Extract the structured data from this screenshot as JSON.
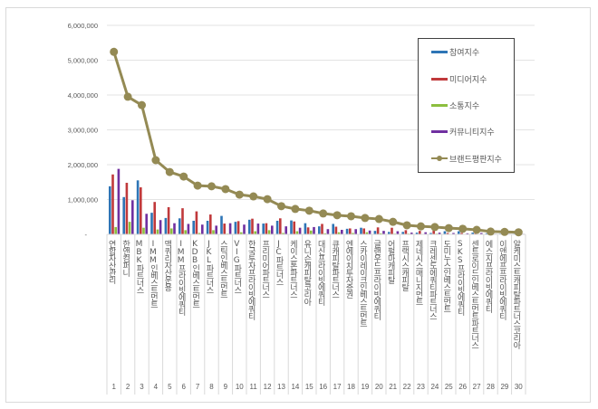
{
  "chart_data": {
    "type": "bar+line",
    "title": "",
    "xlabel": "",
    "ylabel": "",
    "ylim": [
      0,
      6000000
    ],
    "yticks": [
      "6,000,000",
      "5,000,000",
      "4,000,000",
      "3,000,000",
      "2,000,000",
      "1,000,000",
      "-"
    ],
    "grid": true,
    "legend_position": "upper right (inside plot)",
    "categories": [
      "연합자산관리",
      "한앤컴퍼니",
      "MBK파트너스",
      "IMM인베스트먼트",
      "맥쿼리자산운용",
      "IMM프라이빗에쿼티",
      "KDB인베스트먼트",
      "JKL파트너스",
      "스틱인베스트먼트",
      "VIG파트너스",
      "한국투자프라이빗에쿼티",
      "프리미어파트너스",
      "JC파트너스",
      "케이스톤파트너스",
      "유니슨캐피탈코리아",
      "대신프라이빗에쿼티",
      "큐캐피탈파트너스",
      "엔에이치투자증권",
      "스카이레이크인베스트먼트",
      "글랜우드프라이빗에쿼티",
      "어펄마캐피탈",
      "프랙시스캐피탈",
      "제네시스매니지먼트",
      "크레센도에쿼티파트너스",
      "도미누스인베스트먼트",
      "SKS프라이빗에쿼티",
      "센트로이드인베스트먼트파트너스",
      "에스지프라이빗에쿼티",
      "이앤에프프라이빗에쿼티",
      "알케미스트캐피탈파트너스코리아"
    ],
    "ranks": [
      "1",
      "2",
      "3",
      "4",
      "5",
      "6",
      "7",
      "8",
      "9",
      "10",
      "11",
      "12",
      "13",
      "14",
      "15",
      "16",
      "17",
      "18",
      "19",
      "20",
      "21",
      "22",
      "23",
      "24",
      "25",
      "26",
      "27",
      "28",
      "29",
      "30"
    ],
    "series": [
      {
        "name": "참여지수",
        "type": "bar",
        "color": "#4472c4",
        "values": [
          1380000,
          1070000,
          1550000,
          620000,
          470000,
          460000,
          390000,
          390000,
          530000,
          360000,
          420000,
          310000,
          390000,
          400000,
          320000,
          230000,
          300000,
          160000,
          190000,
          100000,
          70000,
          70000,
          50000,
          40000,
          90000,
          90000,
          50000,
          30000,
          20000,
          20000
        ]
      },
      {
        "name": "미디어지수",
        "type": "bar",
        "color": "#c0504d",
        "values": [
          1720000,
          1480000,
          1350000,
          930000,
          780000,
          750000,
          660000,
          570000,
          310000,
          380000,
          450000,
          320000,
          460000,
          370000,
          200000,
          300000,
          220000,
          170000,
          170000,
          200000,
          190000,
          120000,
          100000,
          110000,
          40000,
          40000,
          40000,
          30000,
          30000,
          20000
        ]
      },
      {
        "name": "소통지수",
        "type": "bar",
        "color": "#9bbb59",
        "values": [
          210000,
          360000,
          190000,
          140000,
          170000,
          120000,
          40000,
          120000,
          20000,
          60000,
          90000,
          120000,
          40000,
          90000,
          110000,
          30000,
          60000,
          40000,
          60000,
          30000,
          20000,
          20000,
          10000,
          20000,
          10000,
          10000,
          10000,
          5000,
          5000,
          5000
        ]
      },
      {
        "name": "커뮤니티지수",
        "type": "bar",
        "color": "#8064a2",
        "values": [
          1880000,
          980000,
          590000,
          410000,
          320000,
          300000,
          280000,
          250000,
          320000,
          280000,
          310000,
          250000,
          230000,
          190000,
          210000,
          150000,
          130000,
          150000,
          110000,
          100000,
          90000,
          50000,
          60000,
          50000,
          40000,
          30000,
          40000,
          15000,
          15000,
          15000
        ]
      },
      {
        "name": "브랜드평판지수",
        "type": "line",
        "color": "#948a54",
        "values": [
          5240000,
          3950000,
          3710000,
          2130000,
          1790000,
          1660000,
          1400000,
          1380000,
          1300000,
          1140000,
          1090000,
          1010000,
          810000,
          730000,
          680000,
          600000,
          550000,
          520000,
          470000,
          440000,
          360000,
          260000,
          230000,
          210000,
          180000,
          160000,
          130000,
          80000,
          70000,
          60000
        ]
      }
    ]
  }
}
